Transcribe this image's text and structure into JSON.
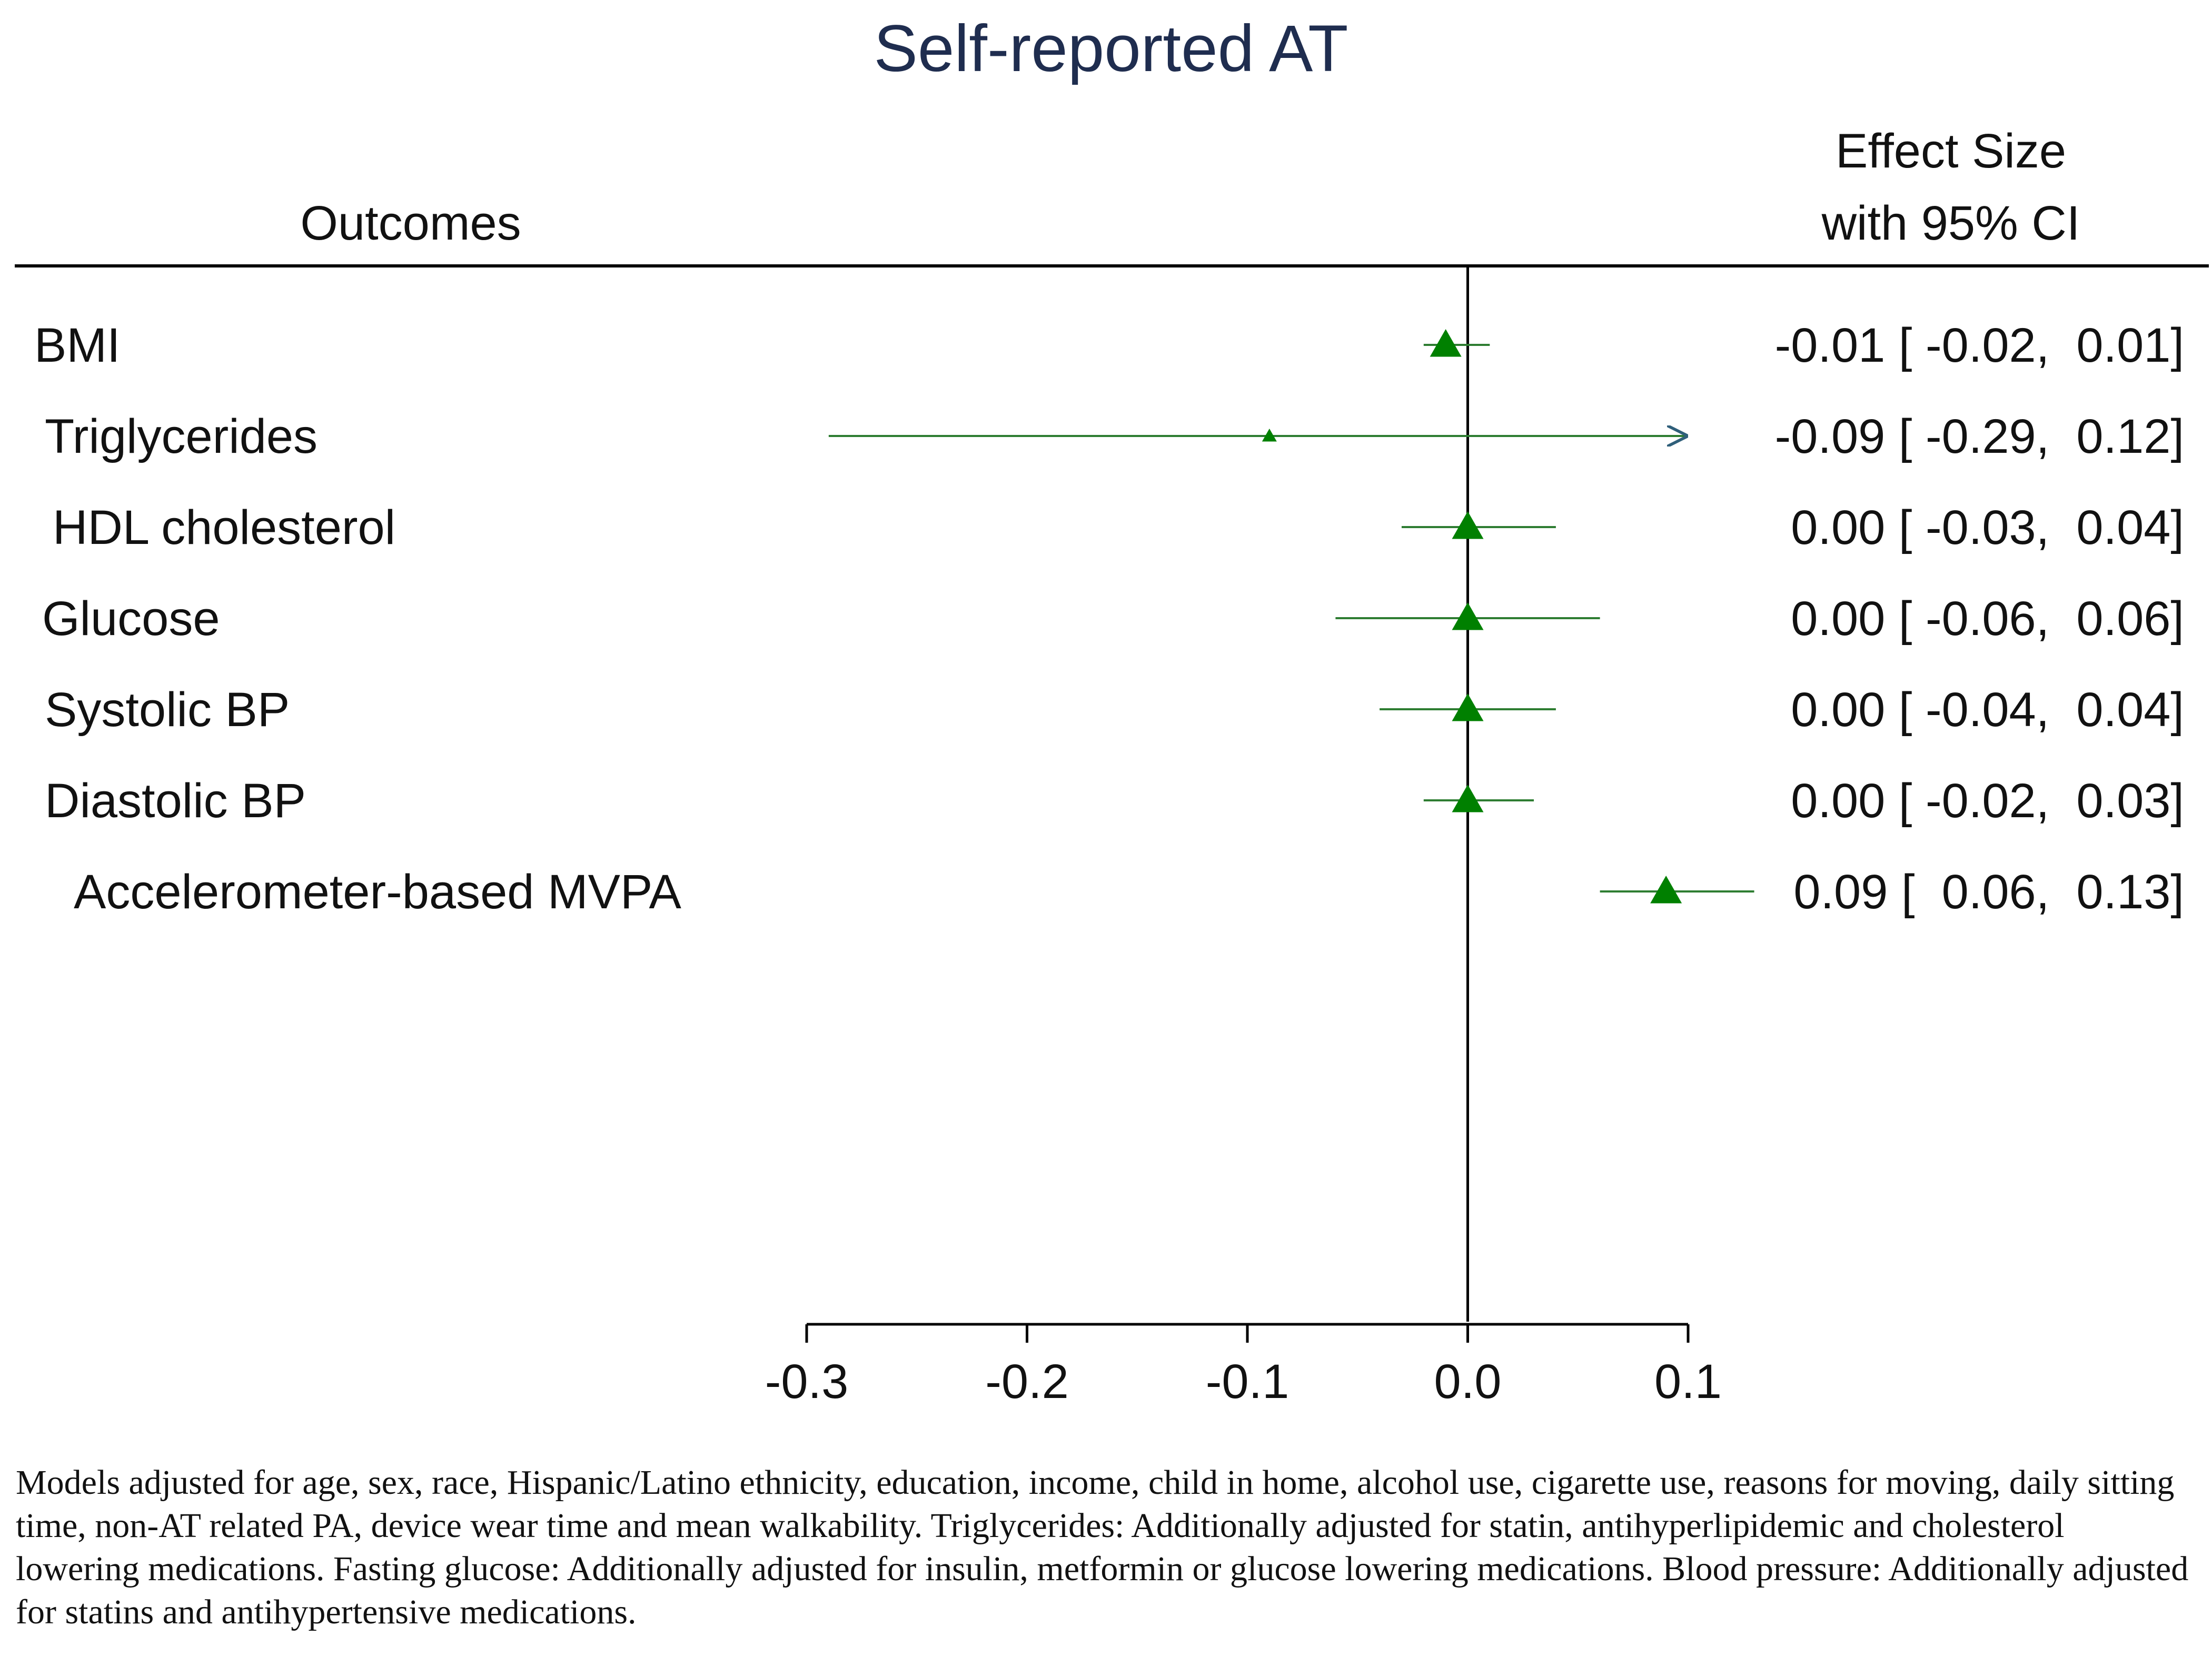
{
  "chart_data": {
    "type": "forest",
    "title": "Self-reported AT",
    "header_left": "Outcomes",
    "header_right_line1": "Effect Size",
    "header_right_line2": "with 95% CI",
    "xlim": [
      -0.3,
      0.1
    ],
    "xticks": [
      "-0.3",
      "-0.2",
      "-0.1",
      "0.0",
      "0.1"
    ],
    "xtick_values": [
      -0.3,
      -0.2,
      -0.1,
      0.0,
      0.1
    ],
    "reference_line": 0.0,
    "marker_color": "#008000",
    "line_color": "#2e7d32",
    "arrow_color": "#2f5f7a",
    "rows": [
      {
        "label": "BMI",
        "effect": -0.01,
        "lower": -0.02,
        "upper": 0.01,
        "text": "-0.01 [ -0.02,  0.01]",
        "marker": "large"
      },
      {
        "label": "Triglycerides",
        "effect": -0.09,
        "lower": -0.29,
        "upper": 0.12,
        "text": "-0.09 [ -0.29,  0.12]",
        "marker": "small",
        "truncated_upper": true
      },
      {
        "label": "HDL cholesterol",
        "effect": 0.0,
        "lower": -0.03,
        "upper": 0.04,
        "text": "0.00 [ -0.03,  0.04]",
        "marker": "large"
      },
      {
        "label": "Glucose",
        "effect": 0.0,
        "lower": -0.06,
        "upper": 0.06,
        "text": "0.00 [ -0.06,  0.06]",
        "marker": "large"
      },
      {
        "label": "Systolic BP",
        "effect": 0.0,
        "lower": -0.04,
        "upper": 0.04,
        "text": "0.00 [ -0.04,  0.04]",
        "marker": "large"
      },
      {
        "label": "Diastolic BP",
        "effect": 0.0,
        "lower": -0.02,
        "upper": 0.03,
        "text": "0.00 [ -0.02,  0.03]",
        "marker": "large"
      },
      {
        "label": "Accelerometer-based MVPA",
        "effect": 0.09,
        "lower": 0.06,
        "upper": 0.13,
        "text": "0.09 [  0.06,  0.13]",
        "marker": "large"
      }
    ],
    "footnote": "Models adjusted for age, sex, race, Hispanic/Latino ethnicity, education, income, child in home, alcohol use, cigarette use, reasons for moving, daily sitting time, non-AT related PA, device wear time and mean walkability. Triglycerides: Additionally adjusted for statin, antihyperlipidemic and cholesterol lowering medications. Fasting glucose: Additionally adjusted for insulin, metformin or glucose lowering medications. Blood pressure: Additionally adjusted for statins and antihypertensive medications."
  }
}
